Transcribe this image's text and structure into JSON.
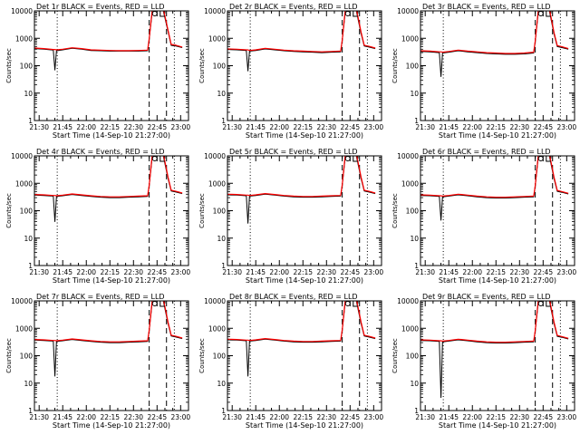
{
  "chart_data": {
    "type": "line",
    "layout": "3x3 grid",
    "xlabel": "Start Time (14-Sep-10 21:27:00)",
    "ylabel": "Counts/sec",
    "x_units": "minutes since 21:27:00",
    "x_range": [
      0,
      98
    ],
    "ylim": [
      1,
      10000
    ],
    "yscale": "log",
    "xtick_labels": [
      "21:30",
      "21:45",
      "22:00",
      "22:15",
      "22:30",
      "22:45",
      "23:00"
    ],
    "xtick_values": [
      3,
      18,
      33,
      48,
      63,
      78,
      93
    ],
    "ytick_labels": [
      "1",
      "10",
      "100",
      "1000",
      "10000"
    ],
    "ytick_values": [
      1,
      10,
      100,
      1000,
      10000
    ],
    "event_lines": [
      {
        "x": 14.5,
        "style": "dotted"
      },
      {
        "x": 73,
        "style": "dashed"
      },
      {
        "x": 84,
        "style": "dashed"
      },
      {
        "x": 89,
        "style": "dotted"
      }
    ],
    "top_markers": [
      {
        "x": 76.5,
        "symbol": "circle"
      },
      {
        "x": 80,
        "symbol": "bracket"
      }
    ],
    "legend": "BLACK = Events, RED = LLD",
    "series_names": [
      "Events",
      "LLD"
    ],
    "series_colors": [
      "#000000",
      "#ff0000"
    ],
    "x_samples": [
      0,
      6,
      12,
      13,
      14,
      18,
      24,
      30,
      36,
      42,
      48,
      54,
      60,
      66,
      72,
      73,
      75,
      77,
      78,
      82,
      85,
      87,
      90,
      94
    ],
    "panels": [
      {
        "title": "Det 1r BLACK = Events, RED = LLD",
        "events": [
          420,
          400,
          370,
          70,
          350,
          380,
          430,
          400,
          360,
          350,
          340,
          340,
          340,
          340,
          350,
          900,
          10000,
          null,
          null,
          10000,
          1800,
          550,
          520,
          460
        ],
        "lld": [
          440,
          420,
          390,
          390,
          380,
          400,
          450,
          420,
          380,
          370,
          360,
          355,
          355,
          360,
          370,
          950,
          12000,
          null,
          null,
          12000,
          2000,
          600,
          560,
          480
        ]
      },
      {
        "title": "Det 2r BLACK = Events, RED = LLD",
        "events": [
          390,
          380,
          360,
          65,
          340,
          360,
          410,
          380,
          350,
          330,
          320,
          310,
          300,
          310,
          320,
          800,
          10000,
          null,
          null,
          10000,
          1500,
          520,
          480,
          420
        ],
        "lld": [
          410,
          400,
          380,
          380,
          360,
          380,
          430,
          400,
          370,
          350,
          340,
          330,
          320,
          330,
          340,
          850,
          12000,
          null,
          null,
          12000,
          1700,
          560,
          510,
          440
        ]
      },
      {
        "title": "Det 3r BLACK = Events, RED = LLD",
        "events": [
          330,
          320,
          300,
          40,
          290,
          310,
          350,
          320,
          300,
          280,
          270,
          260,
          260,
          270,
          290,
          750,
          10000,
          null,
          null,
          10000,
          1400,
          500,
          460,
          400
        ],
        "lld": [
          350,
          340,
          320,
          320,
          310,
          330,
          370,
          340,
          320,
          300,
          290,
          280,
          280,
          290,
          310,
          800,
          12000,
          null,
          null,
          12000,
          1600,
          540,
          490,
          420
        ]
      },
      {
        "title": "Det 4r BLACK = Events, RED = LLD",
        "events": [
          370,
          360,
          340,
          40,
          330,
          350,
          390,
          360,
          330,
          310,
          300,
          300,
          310,
          320,
          330,
          800,
          10000,
          null,
          null,
          10000,
          1500,
          520,
          480,
          420
        ],
        "lld": [
          390,
          380,
          360,
          360,
          350,
          370,
          410,
          380,
          350,
          330,
          320,
          320,
          330,
          340,
          350,
          850,
          12000,
          null,
          null,
          12000,
          1700,
          560,
          510,
          440
        ]
      },
      {
        "title": "Det 5r BLACK = Events, RED = LLD",
        "events": [
          380,
          370,
          350,
          35,
          340,
          360,
          400,
          370,
          340,
          320,
          310,
          310,
          320,
          330,
          340,
          820,
          10000,
          null,
          null,
          10000,
          1500,
          520,
          480,
          420
        ],
        "lld": [
          400,
          390,
          370,
          370,
          360,
          380,
          420,
          390,
          360,
          340,
          330,
          330,
          340,
          350,
          360,
          870,
          12000,
          null,
          null,
          12000,
          1700,
          560,
          510,
          440
        ]
      },
      {
        "title": "Det 6r BLACK = Events, RED = LLD",
        "events": [
          360,
          350,
          330,
          45,
          320,
          340,
          380,
          350,
          320,
          300,
          290,
          290,
          300,
          310,
          320,
          780,
          10000,
          null,
          null,
          10000,
          1450,
          510,
          470,
          410
        ],
        "lld": [
          380,
          370,
          350,
          350,
          340,
          360,
          400,
          370,
          340,
          320,
          310,
          310,
          320,
          330,
          340,
          830,
          12000,
          null,
          null,
          12000,
          1650,
          550,
          500,
          430
        ]
      },
      {
        "title": "Det 7r BLACK = Events, RED = LLD",
        "events": [
          370,
          360,
          340,
          18,
          330,
          350,
          390,
          360,
          330,
          310,
          300,
          300,
          310,
          320,
          330,
          800,
          10000,
          null,
          null,
          10000,
          1500,
          520,
          480,
          420
        ],
        "lld": [
          390,
          380,
          360,
          360,
          350,
          370,
          410,
          380,
          350,
          330,
          320,
          320,
          330,
          340,
          350,
          850,
          12000,
          null,
          null,
          12000,
          1700,
          560,
          510,
          440
        ]
      },
      {
        "title": "Det 8r BLACK = Events, RED = LLD",
        "events": [
          380,
          370,
          350,
          18,
          340,
          360,
          400,
          370,
          340,
          320,
          310,
          310,
          320,
          330,
          340,
          820,
          10000,
          null,
          null,
          10000,
          1500,
          520,
          480,
          420
        ],
        "lld": [
          400,
          390,
          370,
          370,
          360,
          380,
          420,
          390,
          360,
          340,
          330,
          330,
          340,
          350,
          360,
          870,
          12000,
          null,
          null,
          12000,
          1700,
          560,
          510,
          440
        ]
      },
      {
        "title": "Det 9r BLACK = Events, RED = LLD",
        "events": [
          360,
          350,
          330,
          3,
          320,
          340,
          380,
          350,
          320,
          300,
          290,
          290,
          300,
          310,
          320,
          780,
          10000,
          null,
          null,
          10000,
          1450,
          510,
          470,
          410
        ],
        "lld": [
          380,
          370,
          350,
          350,
          340,
          360,
          400,
          370,
          340,
          320,
          310,
          310,
          320,
          330,
          340,
          830,
          12000,
          null,
          null,
          12000,
          1650,
          550,
          500,
          430
        ]
      }
    ]
  }
}
